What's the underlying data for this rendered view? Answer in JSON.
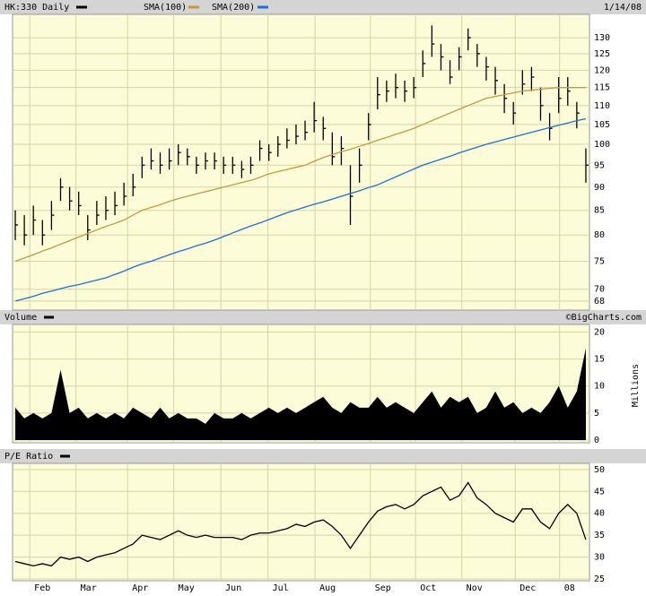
{
  "chart_data": [
    {
      "type": "ohlc",
      "log": true,
      "date": "1/14/08",
      "x": [
        0,
        1,
        2,
        3,
        4,
        5,
        6,
        7,
        8,
        9,
        10,
        11,
        12,
        13,
        14,
        15,
        16,
        17,
        18,
        19,
        20,
        21,
        22,
        23,
        24,
        25,
        26,
        27,
        28,
        29,
        30,
        31,
        32,
        33,
        34,
        35,
        36,
        37,
        38,
        39,
        40,
        41,
        42,
        43,
        44,
        45,
        46,
        47,
        48,
        49,
        50,
        51,
        52,
        53,
        54,
        55,
        56,
        57,
        58,
        59,
        60,
        61,
        62,
        63
      ],
      "series": [
        {
          "name": "HK:330 Daily",
          "color": "#000000",
          "high": [
            85,
            84,
            86,
            83,
            87,
            92,
            90,
            89,
            84,
            87,
            88,
            89,
            91,
            93,
            97,
            99,
            98,
            99,
            100,
            99,
            97,
            98,
            98,
            97,
            97,
            96,
            97,
            101,
            100,
            102,
            104,
            105,
            106,
            111,
            107,
            103,
            102,
            95,
            99,
            108,
            118,
            117,
            119,
            117,
            118,
            126,
            134,
            128,
            123,
            127,
            133,
            128,
            124,
            121,
            116,
            111,
            120,
            121,
            115,
            108,
            118,
            118,
            111,
            99
          ],
          "low": [
            79,
            78,
            80,
            78,
            81,
            87,
            85,
            84,
            79,
            82,
            83,
            84,
            86,
            88,
            92,
            94,
            93,
            94,
            95,
            95,
            93,
            94,
            94,
            93,
            93,
            92,
            93,
            96,
            96,
            97,
            99,
            100,
            101,
            103,
            101,
            95,
            95,
            82,
            91,
            101,
            109,
            111,
            112,
            111,
            112,
            118,
            124,
            120,
            116,
            120,
            126,
            121,
            117,
            113,
            108,
            105,
            113,
            114,
            106,
            101,
            108,
            110,
            104,
            91
          ],
          "values": [
            82,
            80,
            83,
            80,
            84,
            90,
            87,
            86,
            81,
            84,
            85,
            86,
            88,
            90,
            95,
            96,
            95,
            96,
            98,
            97,
            95,
            96,
            96,
            95,
            95,
            94,
            95,
            99,
            98,
            100,
            101,
            102,
            103,
            106,
            104,
            97,
            99,
            88,
            95,
            105,
            113,
            114,
            115,
            114,
            115,
            122,
            128,
            124,
            118,
            124,
            130,
            125,
            121,
            117,
            112,
            108,
            116,
            118,
            110,
            104,
            112,
            114,
            108,
            95
          ]
        },
        {
          "name": "SMA(100)",
          "color": "#c49a3c",
          "values": [
            75,
            75.6,
            76.2,
            76.9,
            77.5,
            78.2,
            78.9,
            79.6,
            80.3,
            81,
            81.7,
            82.3,
            83,
            84,
            85,
            85.6,
            86.2,
            86.9,
            87.5,
            88,
            88.5,
            89,
            89.5,
            90,
            90.5,
            91,
            91.5,
            92.2,
            93,
            93.5,
            94,
            94.5,
            95,
            95.9,
            96.8,
            97.5,
            98.2,
            98.8,
            99.5,
            100.2,
            101,
            101.7,
            102.5,
            103.2,
            104,
            105,
            106,
            107,
            108,
            109,
            110,
            111,
            112,
            112.5,
            113,
            113.5,
            114,
            114.3,
            114.5,
            114.8,
            115,
            115,
            115,
            115
          ]
        },
        {
          "name": "SMA(200)",
          "color": "#1f6fd6",
          "values": [
            68,
            68.4,
            68.8,
            69.3,
            69.7,
            70.1,
            70.5,
            70.8,
            71.2,
            71.6,
            72,
            72.6,
            73.2,
            73.9,
            74.5,
            75,
            75.6,
            76.2,
            76.8,
            77.3,
            77.9,
            78.4,
            79,
            79.7,
            80.4,
            81.1,
            81.8,
            82.4,
            83.1,
            83.8,
            84.5,
            85.1,
            85.7,
            86.3,
            86.8,
            87.4,
            88,
            88.6,
            89.2,
            89.9,
            90.5,
            91.4,
            92.3,
            93.2,
            94.1,
            95,
            95.7,
            96.4,
            97.1,
            97.9,
            98.6,
            99.3,
            100,
            100.6,
            101.2,
            101.8,
            102.4,
            103,
            103.6,
            104.2,
            104.8,
            105.4,
            106,
            106.5
          ]
        }
      ],
      "ylim": [
        66.5,
        137.7
      ],
      "yticks": [
        68,
        70,
        75,
        80,
        85,
        90,
        95,
        100,
        105,
        110,
        115,
        120,
        125,
        130
      ]
    },
    {
      "type": "area",
      "title": "Volume",
      "credit": "©BigCharts.com",
      "ylabel": "Millions",
      "color": "#000000",
      "x": [
        0,
        1,
        2,
        3,
        4,
        5,
        6,
        7,
        8,
        9,
        10,
        11,
        12,
        13,
        14,
        15,
        16,
        17,
        18,
        19,
        20,
        21,
        22,
        23,
        24,
        25,
        26,
        27,
        28,
        29,
        30,
        31,
        32,
        33,
        34,
        35,
        36,
        37,
        38,
        39,
        40,
        41,
        42,
        43,
        44,
        45,
        46,
        47,
        48,
        49,
        50,
        51,
        52,
        53,
        54,
        55,
        56,
        57,
        58,
        59,
        60,
        61,
        62,
        63
      ],
      "values": [
        6,
        4,
        5,
        4,
        5,
        13,
        5,
        6,
        4,
        5,
        4,
        5,
        4,
        6,
        5,
        4,
        6,
        4,
        5,
        4,
        4,
        3,
        5,
        4,
        4,
        5,
        4,
        5,
        6,
        5,
        6,
        5,
        6,
        7,
        8,
        6,
        5,
        7,
        6,
        6,
        8,
        6,
        7,
        6,
        5,
        7,
        9,
        6,
        8,
        7,
        8,
        5,
        6,
        9,
        6,
        7,
        5,
        6,
        5,
        7,
        10,
        6,
        9,
        17
      ],
      "ylim": [
        -0.5,
        21.4
      ],
      "yticks": [
        0,
        5,
        10,
        15,
        20
      ]
    },
    {
      "type": "line",
      "title": "P/E Ratio",
      "color": "#000000",
      "x": [
        0,
        1,
        2,
        3,
        4,
        5,
        6,
        7,
        8,
        9,
        10,
        11,
        12,
        13,
        14,
        15,
        16,
        17,
        18,
        19,
        20,
        21,
        22,
        23,
        24,
        25,
        26,
        27,
        28,
        29,
        30,
        31,
        32,
        33,
        34,
        35,
        36,
        37,
        38,
        39,
        40,
        41,
        42,
        43,
        44,
        45,
        46,
        47,
        48,
        49,
        50,
        51,
        52,
        53,
        54,
        55,
        56,
        57,
        58,
        59,
        60,
        61,
        62,
        63
      ],
      "values": [
        29,
        28.5,
        28,
        28.5,
        28,
        30,
        29.5,
        30,
        29,
        30,
        30.5,
        31,
        32,
        33,
        35,
        34.5,
        34,
        35,
        36,
        35,
        34.5,
        35,
        34.5,
        34.5,
        34.5,
        34,
        35,
        35.5,
        35.5,
        36,
        36.5,
        37.5,
        37,
        38,
        38.5,
        37,
        35,
        32,
        35,
        38,
        40.5,
        41.5,
        42,
        41,
        42,
        44,
        45,
        46,
        43,
        44,
        47,
        43.5,
        42,
        40,
        39,
        38,
        41,
        41,
        38,
        36.5,
        40,
        42,
        40,
        34
      ],
      "ylim": [
        24.6,
        51.4
      ],
      "yticks": [
        25,
        30,
        35,
        40,
        45,
        50
      ],
      "xlim": [
        -0.3,
        63.4
      ],
      "xticks": [
        {
          "value": 1.6,
          "label": "Feb"
        },
        {
          "value": 6.7,
          "label": "Mar"
        },
        {
          "value": 12.4,
          "label": "Apr"
        },
        {
          "value": 17.5,
          "label": "May"
        },
        {
          "value": 22.7,
          "label": "Jun"
        },
        {
          "value": 27.9,
          "label": "Jul"
        },
        {
          "value": 33.1,
          "label": "Aug"
        },
        {
          "value": 39.2,
          "label": "Sep"
        },
        {
          "value": 44.2,
          "label": "Oct"
        },
        {
          "value": 49.3,
          "label": "Nov"
        },
        {
          "value": 55.2,
          "label": "Dec"
        },
        {
          "value": 60.1,
          "label": "08"
        }
      ]
    }
  ]
}
